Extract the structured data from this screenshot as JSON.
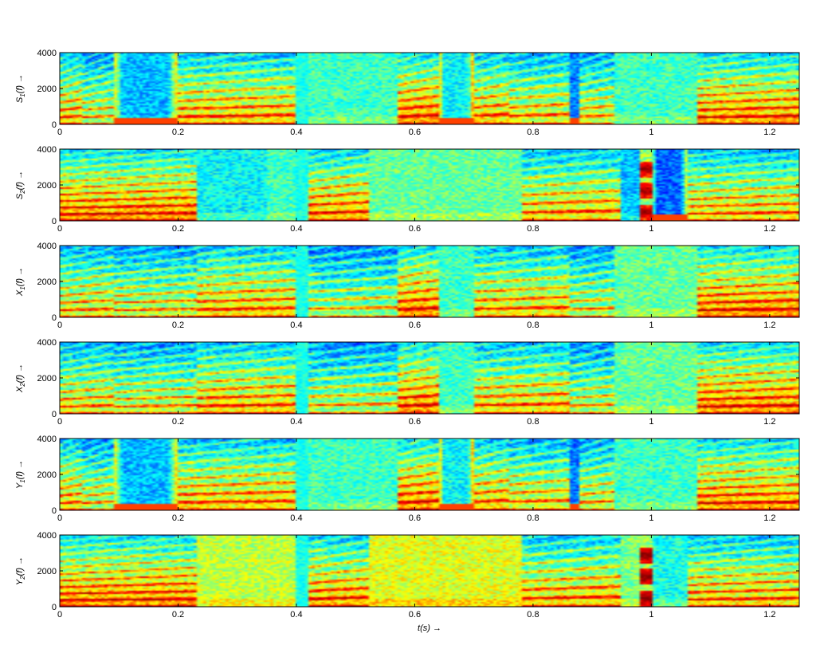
{
  "chart_data": [
    {
      "type": "heatmap",
      "ylabel": {
        "var": "S",
        "sub": "1",
        "arg": "(f)",
        "arrow": "→"
      },
      "xlim": [
        0,
        1.25
      ],
      "ylim": [
        0,
        4000
      ],
      "xticks": [
        "0",
        "0.2",
        "0.4",
        "0.6",
        "0.8",
        "1",
        "1.2"
      ],
      "yticks": [
        "0",
        "2000",
        "4000"
      ],
      "colormap": [
        "#00008f",
        "#0000ff",
        "#00ffff",
        "#ffff00",
        "#ff0000",
        "#800000"
      ],
      "segments": [
        {
          "t": [
            0.0,
            0.04
          ],
          "kind": "voiced",
          "f0": 0.11,
          "level": 0.7
        },
        {
          "t": [
            0.04,
            0.09
          ],
          "kind": "voiced",
          "f0": 0.11,
          "level": 0.6
        },
        {
          "t": [
            0.09,
            0.2
          ],
          "kind": "hole",
          "level": 0.35
        },
        {
          "t": [
            0.2,
            0.4
          ],
          "kind": "voiced",
          "f0": 0.12,
          "level": 0.72
        },
        {
          "t": [
            0.4,
            0.42
          ],
          "kind": "gap"
        },
        {
          "t": [
            0.42,
            0.57
          ],
          "kind": "noise",
          "level": 0.45
        },
        {
          "t": [
            0.57,
            0.64
          ],
          "kind": "voiced",
          "f0": 0.12,
          "level": 0.8
        },
        {
          "t": [
            0.64,
            0.7
          ],
          "kind": "hole",
          "level": 0.4
        },
        {
          "t": [
            0.7,
            0.76
          ],
          "kind": "voiced",
          "f0": 0.13,
          "level": 0.72
        },
        {
          "t": [
            0.76,
            0.86
          ],
          "kind": "voiced",
          "f0": 0.13,
          "level": 0.66
        },
        {
          "t": [
            0.86,
            0.88
          ],
          "kind": "hole",
          "level": 0.3
        },
        {
          "t": [
            0.88,
            0.94
          ],
          "kind": "voiced",
          "f0": 0.12,
          "level": 0.62
        },
        {
          "t": [
            0.94,
            1.08
          ],
          "kind": "noise",
          "level": 0.45
        },
        {
          "t": [
            1.08,
            1.25
          ],
          "kind": "voiced",
          "f0": 0.11,
          "level": 0.78
        }
      ]
    },
    {
      "type": "heatmap",
      "ylabel": {
        "var": "S",
        "sub": "2",
        "arg": "(f)",
        "arrow": "→"
      },
      "xlim": [
        0,
        1.25
      ],
      "ylim": [
        0,
        4000
      ],
      "xticks": [
        "0",
        "0.2",
        "0.4",
        "0.6",
        "0.8",
        "1",
        "1.2"
      ],
      "yticks": [
        "0",
        "2000",
        "4000"
      ],
      "colormap": [
        "#00008f",
        "#0000ff",
        "#00ffff",
        "#ffff00",
        "#ff0000",
        "#800000"
      ],
      "segments": [
        {
          "t": [
            0.0,
            0.23
          ],
          "kind": "voiced",
          "f0": 0.1,
          "level": 0.8
        },
        {
          "t": [
            0.23,
            0.35
          ],
          "kind": "noise",
          "level": 0.4
        },
        {
          "t": [
            0.35,
            0.4
          ],
          "kind": "noise",
          "level": 0.45
        },
        {
          "t": [
            0.4,
            0.42
          ],
          "kind": "gap"
        },
        {
          "t": [
            0.42,
            0.52
          ],
          "kind": "voiced",
          "f0": 0.12,
          "level": 0.76
        },
        {
          "t": [
            0.52,
            0.78
          ],
          "kind": "noise",
          "level": 0.48
        },
        {
          "t": [
            0.78,
            0.95
          ],
          "kind": "voiced",
          "f0": 0.13,
          "level": 0.7
        },
        {
          "t": [
            0.95,
            0.98
          ],
          "kind": "noise",
          "level": 0.35
        },
        {
          "t": [
            0.98,
            1.0
          ],
          "kind": "blob",
          "level": 0.75
        },
        {
          "t": [
            1.0,
            1.06
          ],
          "kind": "hole",
          "level": 0.28
        },
        {
          "t": [
            1.06,
            1.25
          ],
          "kind": "voiced",
          "f0": 0.11,
          "level": 0.7
        }
      ]
    },
    {
      "type": "heatmap",
      "ylabel": {
        "var": "X",
        "sub": "1",
        "arg": "(f)",
        "arrow": "→"
      },
      "xlim": [
        0,
        1.25
      ],
      "ylim": [
        0,
        4000
      ],
      "xticks": [
        "0",
        "0.2",
        "0.4",
        "0.6",
        "0.8",
        "1",
        "1.2"
      ],
      "yticks": [
        "0",
        "2000",
        "4000"
      ],
      "colormap": [
        "#00008f",
        "#0000ff",
        "#00ffff",
        "#ffff00",
        "#ff0000",
        "#800000"
      ],
      "segments": [
        {
          "t": [
            0.0,
            0.09
          ],
          "kind": "voiced",
          "f0": 0.11,
          "level": 0.66
        },
        {
          "t": [
            0.09,
            0.23
          ],
          "kind": "voiced",
          "f0": 0.11,
          "level": 0.62
        },
        {
          "t": [
            0.23,
            0.4
          ],
          "kind": "voiced",
          "f0": 0.12,
          "level": 0.72
        },
        {
          "t": [
            0.4,
            0.42
          ],
          "kind": "gap"
        },
        {
          "t": [
            0.42,
            0.57
          ],
          "kind": "voiced",
          "f0": 0.13,
          "level": 0.56
        },
        {
          "t": [
            0.57,
            0.64
          ],
          "kind": "voiced",
          "f0": 0.12,
          "level": 0.8
        },
        {
          "t": [
            0.64,
            0.7
          ],
          "kind": "noise",
          "level": 0.45
        },
        {
          "t": [
            0.7,
            0.86
          ],
          "kind": "voiced",
          "f0": 0.13,
          "level": 0.7
        },
        {
          "t": [
            0.86,
            0.94
          ],
          "kind": "voiced",
          "f0": 0.12,
          "level": 0.58
        },
        {
          "t": [
            0.94,
            1.08
          ],
          "kind": "noise",
          "level": 0.48
        },
        {
          "t": [
            1.08,
            1.25
          ],
          "kind": "voiced",
          "f0": 0.11,
          "level": 0.8
        }
      ]
    },
    {
      "type": "heatmap",
      "ylabel": {
        "var": "X",
        "sub": "2",
        "arg": "(f)",
        "arrow": "→"
      },
      "xlim": [
        0,
        1.25
      ],
      "ylim": [
        0,
        4000
      ],
      "xticks": [
        "0",
        "0.2",
        "0.4",
        "0.6",
        "0.8",
        "1",
        "1.2"
      ],
      "yticks": [
        "0",
        "2000",
        "4000"
      ],
      "colormap": [
        "#00008f",
        "#0000ff",
        "#00ffff",
        "#ffff00",
        "#ff0000",
        "#800000"
      ],
      "segments": [
        {
          "t": [
            0.0,
            0.09
          ],
          "kind": "voiced",
          "f0": 0.11,
          "level": 0.66
        },
        {
          "t": [
            0.09,
            0.23
          ],
          "kind": "voiced",
          "f0": 0.11,
          "level": 0.62
        },
        {
          "t": [
            0.23,
            0.4
          ],
          "kind": "voiced",
          "f0": 0.12,
          "level": 0.72
        },
        {
          "t": [
            0.4,
            0.42
          ],
          "kind": "gap"
        },
        {
          "t": [
            0.42,
            0.57
          ],
          "kind": "voiced",
          "f0": 0.13,
          "level": 0.58
        },
        {
          "t": [
            0.57,
            0.64
          ],
          "kind": "voiced",
          "f0": 0.12,
          "level": 0.8
        },
        {
          "t": [
            0.64,
            0.7
          ],
          "kind": "noise",
          "level": 0.45
        },
        {
          "t": [
            0.7,
            0.86
          ],
          "kind": "voiced",
          "f0": 0.13,
          "level": 0.7
        },
        {
          "t": [
            0.86,
            0.94
          ],
          "kind": "voiced",
          "f0": 0.12,
          "level": 0.58
        },
        {
          "t": [
            0.94,
            1.08
          ],
          "kind": "noise",
          "level": 0.48
        },
        {
          "t": [
            1.08,
            1.25
          ],
          "kind": "voiced",
          "f0": 0.11,
          "level": 0.8
        }
      ]
    },
    {
      "type": "heatmap",
      "ylabel": {
        "var": "Y",
        "sub": "1",
        "arg": "(f)",
        "arrow": "→"
      },
      "xlim": [
        0,
        1.25
      ],
      "ylim": [
        0,
        4000
      ],
      "xticks": [
        "0",
        "0.2",
        "0.4",
        "0.6",
        "0.8",
        "1",
        "1.2"
      ],
      "yticks": [
        "0",
        "2000",
        "4000"
      ],
      "colormap": [
        "#00008f",
        "#0000ff",
        "#00ffff",
        "#ffff00",
        "#ff0000",
        "#800000"
      ],
      "segments": [
        {
          "t": [
            0.0,
            0.04
          ],
          "kind": "voiced",
          "f0": 0.11,
          "level": 0.7
        },
        {
          "t": [
            0.04,
            0.09
          ],
          "kind": "voiced",
          "f0": 0.11,
          "level": 0.6
        },
        {
          "t": [
            0.09,
            0.2
          ],
          "kind": "hole",
          "level": 0.35
        },
        {
          "t": [
            0.2,
            0.4
          ],
          "kind": "voiced",
          "f0": 0.12,
          "level": 0.72
        },
        {
          "t": [
            0.4,
            0.42
          ],
          "kind": "gap"
        },
        {
          "t": [
            0.42,
            0.57
          ],
          "kind": "noise",
          "level": 0.45
        },
        {
          "t": [
            0.57,
            0.64
          ],
          "kind": "voiced",
          "f0": 0.12,
          "level": 0.8
        },
        {
          "t": [
            0.64,
            0.7
          ],
          "kind": "hole",
          "level": 0.4
        },
        {
          "t": [
            0.7,
            0.76
          ],
          "kind": "voiced",
          "f0": 0.13,
          "level": 0.72
        },
        {
          "t": [
            0.76,
            0.86
          ],
          "kind": "voiced",
          "f0": 0.13,
          "level": 0.66
        },
        {
          "t": [
            0.86,
            0.88
          ],
          "kind": "hole",
          "level": 0.3
        },
        {
          "t": [
            0.88,
            0.94
          ],
          "kind": "voiced",
          "f0": 0.12,
          "level": 0.62
        },
        {
          "t": [
            0.94,
            1.08
          ],
          "kind": "noise",
          "level": 0.45
        },
        {
          "t": [
            1.08,
            1.25
          ],
          "kind": "voiced",
          "f0": 0.11,
          "level": 0.78
        }
      ]
    },
    {
      "type": "heatmap",
      "ylabel": {
        "var": "Y",
        "sub": "2",
        "arg": "(f)",
        "arrow": "→"
      },
      "xlabel": {
        "text": "t(s)",
        "arrow": "→"
      },
      "xlim": [
        0,
        1.25
      ],
      "ylim": [
        0,
        4000
      ],
      "xticks": [
        "0",
        "0.2",
        "0.4",
        "0.6",
        "0.8",
        "1",
        "1.2"
      ],
      "yticks": [
        "0",
        "2000",
        "4000"
      ],
      "colormap": [
        "#00008f",
        "#0000ff",
        "#00ffff",
        "#ffff00",
        "#ff0000",
        "#800000"
      ],
      "segments": [
        {
          "t": [
            0.0,
            0.23
          ],
          "kind": "voiced",
          "f0": 0.1,
          "level": 0.8
        },
        {
          "t": [
            0.23,
            0.4
          ],
          "kind": "noise",
          "level": 0.55
        },
        {
          "t": [
            0.4,
            0.42
          ],
          "kind": "gap"
        },
        {
          "t": [
            0.42,
            0.52
          ],
          "kind": "voiced",
          "f0": 0.12,
          "level": 0.76
        },
        {
          "t": [
            0.52,
            0.78
          ],
          "kind": "noise",
          "level": 0.58
        },
        {
          "t": [
            0.78,
            0.95
          ],
          "kind": "voiced",
          "f0": 0.13,
          "level": 0.72
        },
        {
          "t": [
            0.95,
            0.98
          ],
          "kind": "noise",
          "level": 0.5
        },
        {
          "t": [
            0.98,
            1.0
          ],
          "kind": "blob",
          "level": 0.8
        },
        {
          "t": [
            1.0,
            1.06
          ],
          "kind": "noise",
          "level": 0.42
        },
        {
          "t": [
            1.06,
            1.25
          ],
          "kind": "voiced",
          "f0": 0.11,
          "level": 0.72
        }
      ]
    }
  ]
}
